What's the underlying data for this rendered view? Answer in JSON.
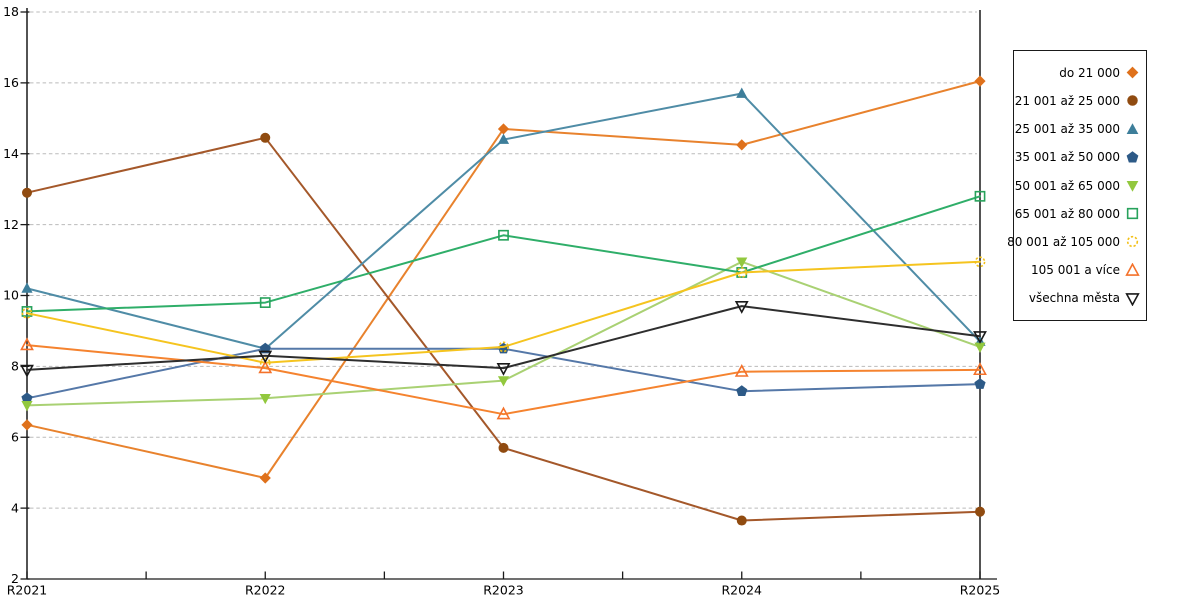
{
  "chart_data": {
    "type": "line",
    "title": "",
    "xlabel": "",
    "ylabel": "",
    "categories": [
      "R2021",
      "R2022",
      "R2023",
      "R2024",
      "R2025"
    ],
    "ylim": [
      2,
      18
    ],
    "y_ticks": [
      2,
      4,
      6,
      8,
      10,
      12,
      14,
      16,
      18
    ],
    "grid": "horizontal-dashed",
    "legend_position": "right",
    "axis_color": "#1a1a1a",
    "gridline_color": "#bbbbbb",
    "series": [
      {
        "name": "do 21 000",
        "values": [
          6.35,
          4.85,
          14.7,
          14.25,
          16.05
        ],
        "line_color": "#e8822d",
        "marker_color": "#df711b",
        "marker": "diamond",
        "filled": true
      },
      {
        "name": "21 001 až 25 000",
        "values": [
          12.9,
          14.45,
          5.7,
          3.65,
          3.9
        ],
        "line_color": "#a4582a",
        "marker_color": "#904b10",
        "marker": "circle",
        "filled": true
      },
      {
        "name": "25 001 až 35 000",
        "values": [
          10.2,
          8.5,
          14.4,
          15.7,
          8.7
        ],
        "line_color": "#4f8ca6",
        "marker_color": "#3d7e9a",
        "marker": "triangle-up",
        "filled": true
      },
      {
        "name": "35 001 až 50 000",
        "values": [
          7.1,
          8.5,
          8.5,
          7.3,
          7.5
        ],
        "line_color": "#5578a8",
        "marker_color": "#2d5a87",
        "marker": "pentagon",
        "filled": true
      },
      {
        "name": "50 001 až 65 000",
        "values": [
          6.9,
          7.1,
          7.6,
          10.95,
          8.55
        ],
        "line_color": "#a9d173",
        "marker_color": "#92c83e",
        "marker": "triangle-down",
        "filled": true
      },
      {
        "name": "65 001 až 80 000",
        "values": [
          9.55,
          9.8,
          11.7,
          10.65,
          12.8
        ],
        "line_color": "#2fae69",
        "marker_color": "#27a25b",
        "marker": "square",
        "filled": false
      },
      {
        "name": "80 001 až 105 000",
        "values": [
          9.5,
          8.1,
          8.55,
          10.65,
          10.95
        ],
        "line_color": "#f5c41f",
        "marker_color": "#f2c018",
        "marker": "circle-dashed",
        "filled": false
      },
      {
        "name": "105 001 a více",
        "values": [
          8.6,
          7.95,
          6.65,
          7.85,
          7.9
        ],
        "line_color": "#f5832f",
        "marker_color": "#f4722b",
        "marker": "triangle-up",
        "filled": false
      },
      {
        "name": "všechna města",
        "values": [
          7.9,
          8.3,
          7.95,
          9.7,
          8.85
        ],
        "line_color": "#2e2e2e",
        "marker_color": "#1a1a1a",
        "marker": "triangle-down",
        "filled": false
      }
    ]
  }
}
